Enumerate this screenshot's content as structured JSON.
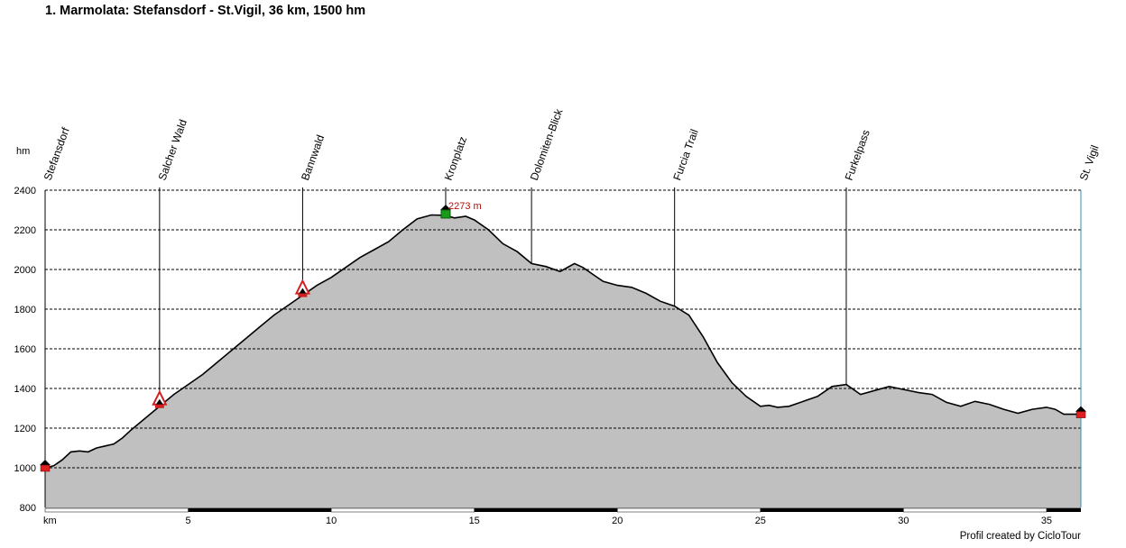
{
  "chart_data": {
    "type": "area",
    "title": "1. Marmolata: Stefansdorf - St.Vigil, 36 km, 1500 hm",
    "xlabel": "km",
    "ylabel": "hm",
    "xlim": [
      0,
      36.2
    ],
    "ylim": [
      800,
      2400
    ],
    "x_ticks": [
      5,
      10,
      15,
      20,
      25,
      30,
      35
    ],
    "y_ticks": [
      800,
      1000,
      1200,
      1400,
      1600,
      1800,
      2000,
      2200,
      2400
    ],
    "grid": "horizontal dashed",
    "fill_color": "#c0c0c0",
    "line_color": "#000000",
    "max_label": "2273 m",
    "profile": {
      "x": [
        0,
        0.3,
        0.6,
        0.9,
        1.2,
        1.5,
        1.8,
        2.1,
        2.4,
        2.7,
        3.0,
        3.5,
        4.0,
        4.5,
        5.0,
        5.5,
        6.0,
        6.5,
        7.0,
        7.5,
        8.0,
        8.5,
        9.0,
        9.5,
        10.0,
        10.5,
        11.0,
        11.5,
        12.0,
        12.5,
        13.0,
        13.5,
        14.0,
        14.3,
        14.7,
        15.0,
        15.5,
        16.0,
        16.5,
        17.0,
        17.5,
        18.0,
        18.5,
        18.8,
        19.2,
        19.5,
        20.0,
        20.5,
        21.0,
        21.5,
        22.0,
        22.5,
        23.0,
        23.5,
        24.0,
        24.5,
        25.0,
        25.3,
        25.6,
        26.0,
        26.5,
        27.0,
        27.5,
        28.0,
        28.5,
        29.0,
        29.5,
        30.0,
        30.5,
        31.0,
        31.5,
        32.0,
        32.5,
        33.0,
        33.5,
        34.0,
        34.5,
        35.0,
        35.3,
        35.6,
        36.2
      ],
      "y": [
        1000,
        1010,
        1040,
        1080,
        1085,
        1080,
        1100,
        1110,
        1120,
        1150,
        1190,
        1250,
        1310,
        1370,
        1420,
        1470,
        1530,
        1590,
        1650,
        1710,
        1770,
        1820,
        1870,
        1920,
        1960,
        2010,
        2060,
        2100,
        2140,
        2200,
        2255,
        2275,
        2273,
        2260,
        2268,
        2250,
        2200,
        2130,
        2090,
        2030,
        2015,
        1990,
        2030,
        2010,
        1970,
        1940,
        1920,
        1910,
        1880,
        1840,
        1815,
        1770,
        1660,
        1530,
        1430,
        1360,
        1310,
        1315,
        1305,
        1310,
        1335,
        1360,
        1410,
        1420,
        1370,
        1390,
        1410,
        1395,
        1380,
        1370,
        1330,
        1310,
        1335,
        1320,
        1295,
        1275,
        1295,
        1305,
        1295,
        1270,
        1270
      ]
    },
    "waypoints": [
      {
        "label": "Stefansdorf",
        "km": 0.0,
        "alt": 1000,
        "marker": "endpoint"
      },
      {
        "label": "Salcher Wald",
        "km": 4.0,
        "alt": 1310,
        "marker": "pass"
      },
      {
        "label": "Bannwald",
        "km": 9.0,
        "alt": 1870,
        "marker": "pass"
      },
      {
        "label": "Kronplatz",
        "km": 14.0,
        "alt": 2273,
        "marker": "summit"
      },
      {
        "label": "Dolomiten-Blick",
        "km": 17.0,
        "alt": null,
        "marker": "none"
      },
      {
        "label": "Furcia Trail",
        "km": 22.0,
        "alt": null,
        "marker": "none"
      },
      {
        "label": "Furkelpass",
        "km": 28.0,
        "alt": null,
        "marker": "none"
      },
      {
        "label": "St. Vigil",
        "km": 36.2,
        "alt": 1270,
        "marker": "endpoint"
      }
    ],
    "credit": "Profil created by CicloTour"
  }
}
